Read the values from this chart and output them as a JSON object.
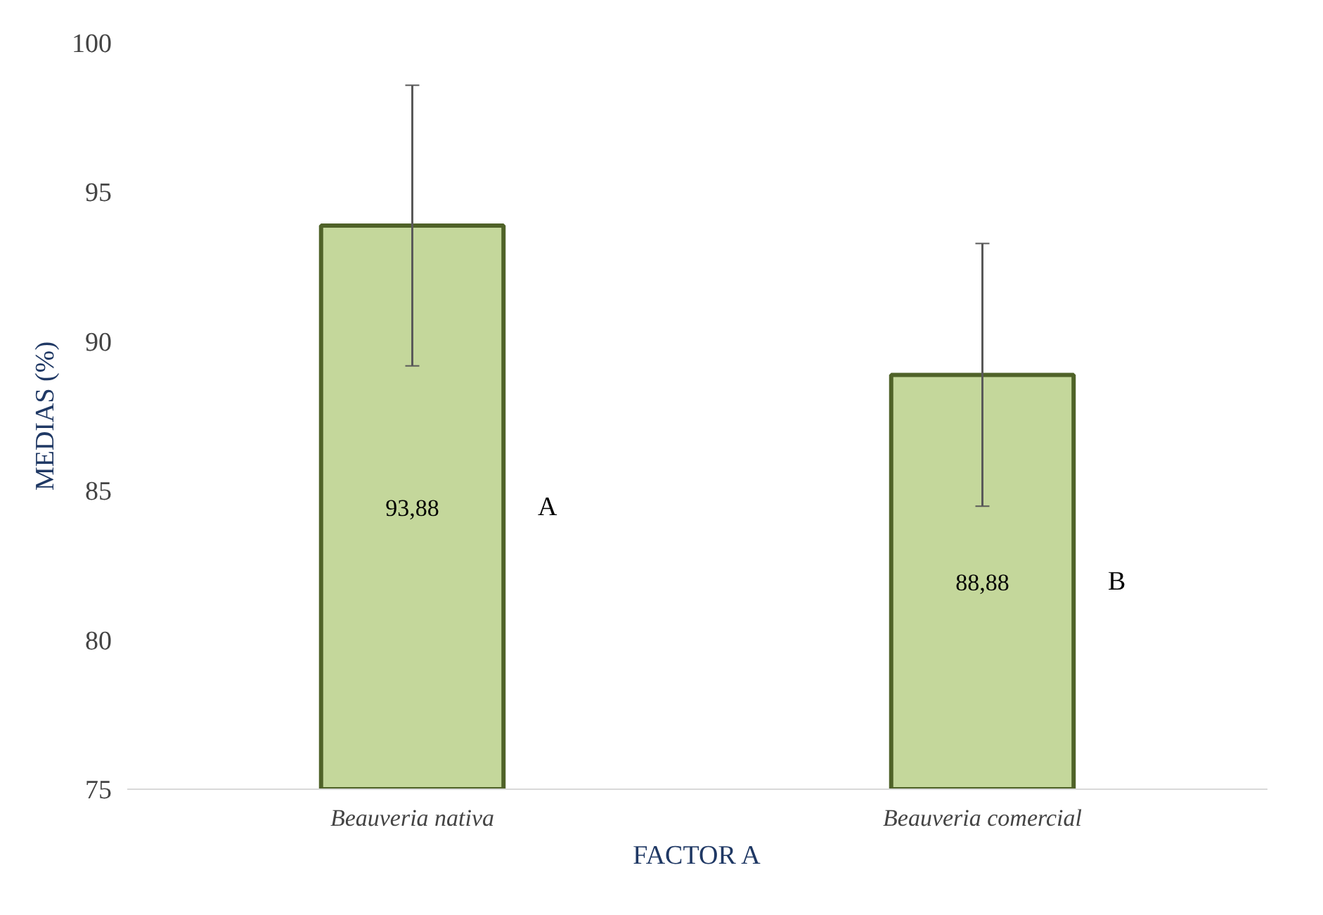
{
  "chart_data": {
    "type": "bar",
    "xlabel": "FACTOR A",
    "ylabel": "MEDIAS (%)",
    "categories": [
      "Beauveria nativa",
      "Beauveria comercial"
    ],
    "values": [
      93.88,
      88.88
    ],
    "errors": [
      4.7,
      4.4
    ],
    "color": "#c4d79b",
    "ylim": [
      75,
      100
    ],
    "yticks": [
      75,
      80,
      85,
      90,
      95,
      100
    ],
    "value_labels": [
      "93,88",
      "88,88"
    ],
    "grid": false,
    "annotations": [
      "A",
      "B"
    ]
  }
}
